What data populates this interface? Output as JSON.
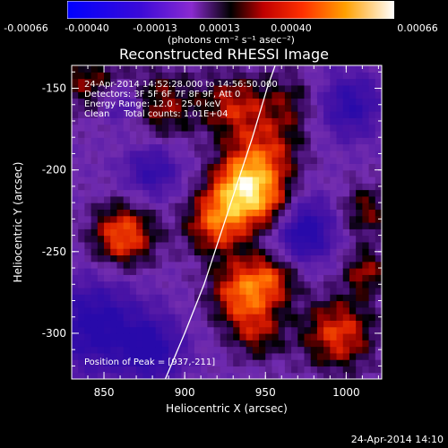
{
  "colorbar": {
    "ticks": [
      "-0.00066",
      "-0.00040",
      "-0.00013",
      "0.00013",
      "0.00040",
      "0.00066"
    ],
    "unit_text": "(photons cm⁻² s⁻¹ asec⁻²)",
    "range": [
      -0.00066,
      0.00066
    ]
  },
  "title": "Reconstructed RHESSI Image",
  "annotations": {
    "line1": "24-Apr-2014 14:52:28.000 to 14:56:50.000",
    "line2": "Detectors: 3F 5F 6F 7F 8F 9F, Att 0",
    "line3": "Energy Range: 12.0 - 25.0 keV",
    "line4": "Clean     Total counts: 1.01E+04",
    "peak": "Position of Peak = [937,-211]"
  },
  "footer_date": "24-Apr-2014 14:10",
  "chart_data": {
    "type": "heatmap",
    "title": "Reconstructed RHESSI Image",
    "xlabel": "Heliocentric X (arcsec)",
    "ylabel": "Heliocentric Y (arcsec)",
    "xlim": [
      830,
      1022
    ],
    "ylim": [
      -328,
      -136
    ],
    "x_ticks": [
      850,
      900,
      950,
      1000
    ],
    "y_ticks": [
      -150,
      -200,
      -250,
      -300
    ],
    "x_tick_labels": [
      "850",
      "900",
      "950",
      "1000"
    ],
    "y_tick_labels": [
      "-150",
      "-200",
      "-250",
      "-300"
    ],
    "peak": [
      937,
      -211
    ],
    "limb_curve": [
      [
        888,
        -328
      ],
      [
        900,
        -300
      ],
      [
        912,
        -270
      ],
      [
        922,
        -240
      ],
      [
        932,
        -210
      ],
      [
        942,
        -180
      ],
      [
        951,
        -150
      ],
      [
        956,
        -136
      ]
    ],
    "sources": [
      {
        "x": 937,
        "y": -211,
        "w": 1.0,
        "s": 14
      },
      {
        "x": 920,
        "y": -232,
        "w": 0.75,
        "s": 14
      },
      {
        "x": 950,
        "y": -190,
        "w": 0.55,
        "s": 16
      },
      {
        "x": 958,
        "y": -226,
        "w": 0.55,
        "s": 12
      },
      {
        "x": 935,
        "y": -275,
        "w": 0.75,
        "s": 14
      },
      {
        "x": 955,
        "y": -265,
        "w": 0.55,
        "s": 12
      },
      {
        "x": 945,
        "y": -300,
        "w": 0.45,
        "s": 12
      },
      {
        "x": 862,
        "y": -240,
        "w": 0.8,
        "s": 14
      },
      {
        "x": 995,
        "y": -300,
        "w": 0.7,
        "s": 16
      },
      {
        "x": 1012,
        "y": -262,
        "w": 0.5,
        "s": 10
      },
      {
        "x": 1012,
        "y": -225,
        "w": 0.45,
        "s": 12
      },
      {
        "x": 885,
        "y": -160,
        "w": 0.5,
        "s": 16
      },
      {
        "x": 965,
        "y": -158,
        "w": 0.35,
        "s": 14
      },
      {
        "x": 930,
        "y": -160,
        "w": 0.55,
        "s": 14
      },
      {
        "x": 840,
        "y": -145,
        "w": 0.45,
        "s": 14
      },
      {
        "x": 862,
        "y": -160,
        "w": -0.5,
        "s": 9
      },
      {
        "x": 1002,
        "y": -160,
        "w": -0.6,
        "s": 14
      },
      {
        "x": 972,
        "y": -236,
        "w": -0.9,
        "s": 14
      },
      {
        "x": 845,
        "y": -295,
        "w": -0.7,
        "s": 20
      },
      {
        "x": 880,
        "y": -310,
        "w": -0.6,
        "s": 14
      },
      {
        "x": 880,
        "y": -200,
        "w": -0.55,
        "s": 12
      }
    ]
  }
}
